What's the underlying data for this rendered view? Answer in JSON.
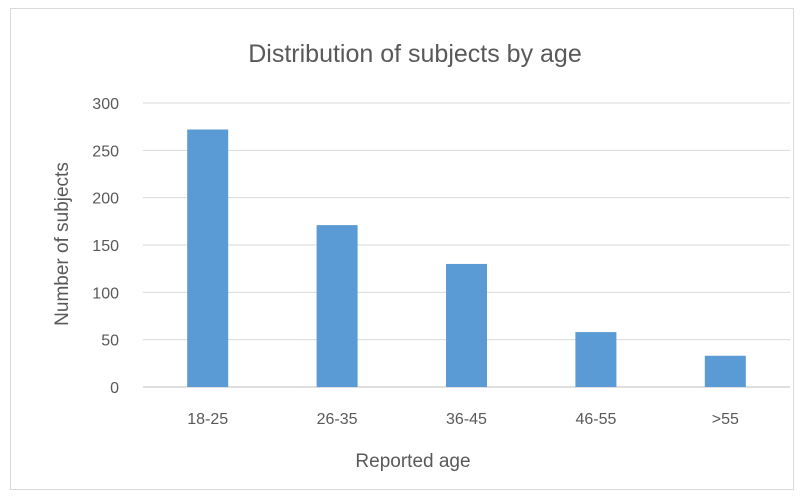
{
  "chart_data": {
    "type": "bar",
    "title": "Distribution of subjects by age",
    "xlabel": "Reported age",
    "ylabel": "Number of subjects",
    "categories": [
      "18-25",
      "26-35",
      "36-45",
      "46-55",
      ">55"
    ],
    "values": [
      272,
      171,
      130,
      58,
      33
    ],
    "ylim": [
      0,
      300
    ],
    "yticks": [
      0,
      50,
      100,
      150,
      200,
      250,
      300
    ],
    "grid": true,
    "legend": "none",
    "bar_color": "#5b9bd5"
  }
}
